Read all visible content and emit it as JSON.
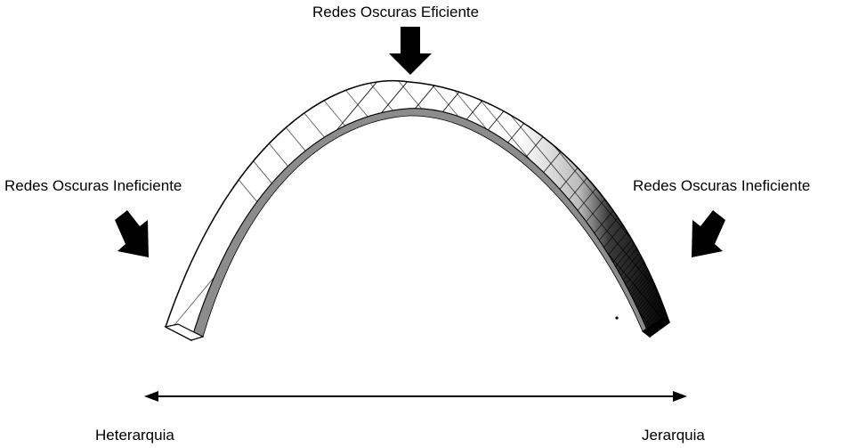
{
  "diagram": {
    "top_label": "Redes Oscuras Eficiente",
    "left_label": "Redes Oscuras Ineficiente",
    "right_label": "Redes Oscuras Ineficiente",
    "axis_left_label": "Heterarquia",
    "axis_right_label": "Jerarquia"
  },
  "colors": {
    "ink": "#000000",
    "arch_inner_shade": "#8c8c8c",
    "background": "#ffffff"
  },
  "icons": [
    "arrow-down-icon",
    "arrow-down-right-icon",
    "arrow-down-left-icon",
    "double-headed-arrow-icon"
  ]
}
